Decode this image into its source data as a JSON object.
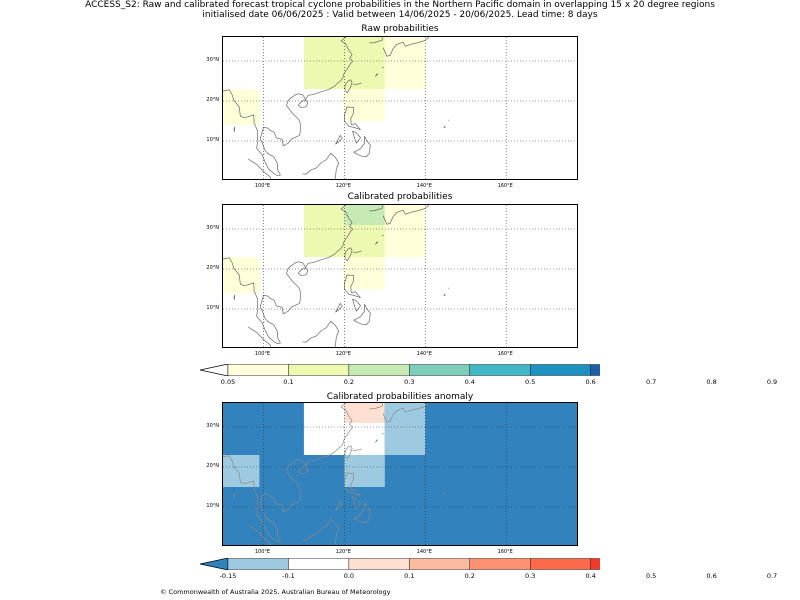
{
  "header": {
    "title": "ACCESS_S2: Raw and calibrated forecast tropical cyclone probabilities in the Northern Pacific domain in overlapping 15 x 20 degree regions",
    "subtitle": "initialised date 06/06/2025 :  Valid between 14/06/2025 - 20/06/2025. Lead time: 8 days"
  },
  "map_extent": {
    "lon": [
      90,
      178
    ],
    "lat": [
      0,
      36
    ]
  },
  "lon_ticks": [
    {
      "value": 100,
      "label": "100°E"
    },
    {
      "value": 120,
      "label": "120°E"
    },
    {
      "value": 140,
      "label": "140°E"
    },
    {
      "value": 160,
      "label": "160°E"
    }
  ],
  "lat_ticks": [
    {
      "value": 10,
      "label": "10°N"
    },
    {
      "value": 20,
      "label": "20°N"
    },
    {
      "value": 30,
      "label": "30°N"
    }
  ],
  "panels": [
    {
      "title": "Raw probabilities",
      "background": null,
      "cells": [
        {
          "lon": [
            90,
            99
          ],
          "lat": [
            14,
            23
          ],
          "color": "#ffffd9"
        },
        {
          "lon": [
            110,
            120
          ],
          "lat": [
            23,
            36
          ],
          "color": "#edf8b1"
        },
        {
          "lon": [
            120,
            130
          ],
          "lat": [
            23,
            36
          ],
          "color": "#edf8b1"
        },
        {
          "lon": [
            130,
            140
          ],
          "lat": [
            23,
            36
          ],
          "color": "#ffffd9"
        },
        {
          "lon": [
            120,
            130
          ],
          "lat": [
            15,
            23
          ],
          "color": "#ffffd9"
        }
      ]
    },
    {
      "title": "Calibrated probabilities",
      "background": null,
      "cells": [
        {
          "lon": [
            90,
            99
          ],
          "lat": [
            14,
            23
          ],
          "color": "#ffffd9"
        },
        {
          "lon": [
            110,
            120
          ],
          "lat": [
            23,
            36
          ],
          "color": "#edf8b1"
        },
        {
          "lon": [
            120,
            130
          ],
          "lat": [
            23,
            31
          ],
          "color": "#edf8b1"
        },
        {
          "lon": [
            120,
            130
          ],
          "lat": [
            31,
            36
          ],
          "color": "#c7e9b4"
        },
        {
          "lon": [
            130,
            140
          ],
          "lat": [
            23,
            36
          ],
          "color": "#ffffd9"
        },
        {
          "lon": [
            120,
            130
          ],
          "lat": [
            15,
            23
          ],
          "color": "#ffffd9"
        }
      ]
    },
    {
      "title": "Calibrated probabilities anomaly",
      "background": "#3182bd",
      "cells": [
        {
          "lon": [
            90,
            99
          ],
          "lat": [
            15,
            23
          ],
          "color": "#9ecae1"
        },
        {
          "lon": [
            110,
            120
          ],
          "lat": [
            23,
            36
          ],
          "color": "#ffffff"
        },
        {
          "lon": [
            120,
            130
          ],
          "lat": [
            23,
            31
          ],
          "color": "#ffffff"
        },
        {
          "lon": [
            120,
            130
          ],
          "lat": [
            31,
            36
          ],
          "color": "#fee0d2"
        },
        {
          "lon": [
            130,
            140
          ],
          "lat": [
            23,
            36
          ],
          "color": "#9ecae1"
        },
        {
          "lon": [
            120,
            130
          ],
          "lat": [
            15,
            23
          ],
          "color": "#9ecae1"
        }
      ]
    }
  ],
  "colorbars": [
    {
      "under": "#ffffff",
      "over": "#081d58",
      "colors": [
        "#ffffd9",
        "#edf8b1",
        "#c7e9b4",
        "#7fcdbb",
        "#41b6c4",
        "#1d91c0",
        "#225ea8",
        "#253494",
        "#081d58"
      ],
      "labels": [
        "0.05",
        "0.1",
        "0.2",
        "0.3",
        "0.4",
        "0.5",
        "0.6",
        "0.7",
        "0.8",
        "0.9"
      ]
    },
    {
      "under": "#3182bd",
      "over": "#67000d",
      "colors": [
        "#9ecae1",
        "#ffffff",
        "#fee0d2",
        "#fcbba1",
        "#fc9272",
        "#fb6a4a",
        "#ef3b2c",
        "#cb181d",
        "#a50f15"
      ],
      "labels": [
        "-0.15",
        "-0.1",
        "0.0",
        "0.1",
        "0.2",
        "0.3",
        "0.4",
        "0.5",
        "0.6",
        "0.7"
      ]
    }
  ],
  "footer": {
    "copyright": "© Commonwealth of Australia 2025, Australian Bureau of Meteorology"
  }
}
